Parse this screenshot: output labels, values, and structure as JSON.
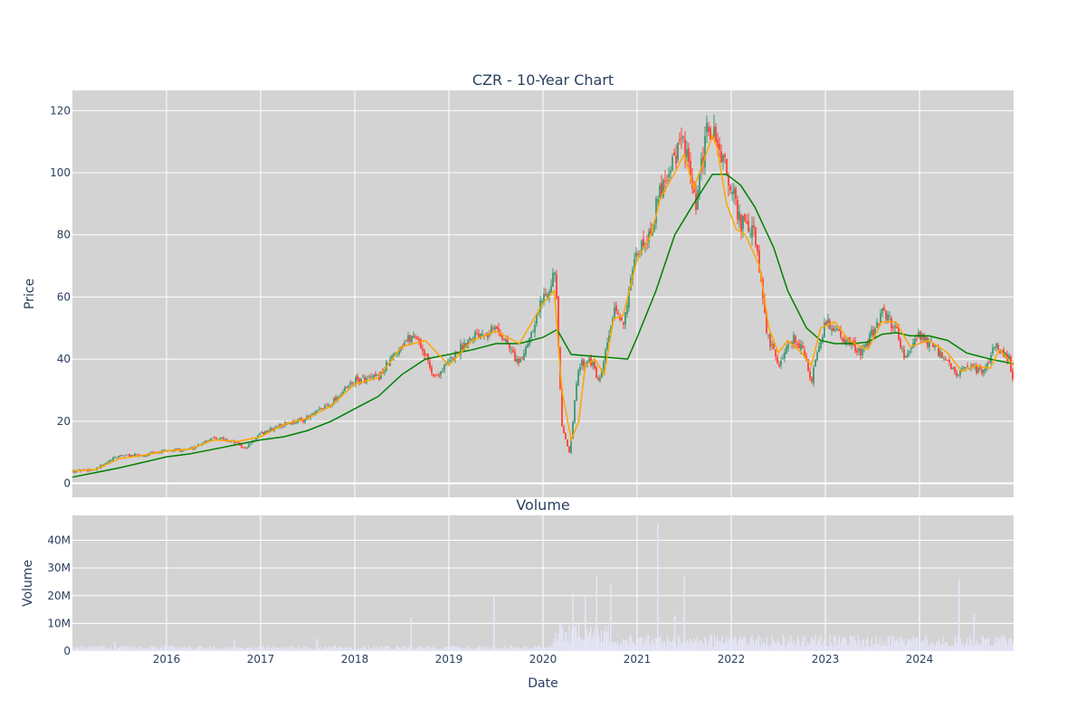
{
  "chart_data": [
    {
      "type": "candlestick",
      "title": "CZR - 10-Year Chart",
      "ylabel": "Price",
      "ylim": [
        -4.5,
        126.5
      ],
      "yticks": [
        0,
        20,
        40,
        60,
        80,
        100,
        120
      ],
      "x_ticks": [
        "2016",
        "2017",
        "2018",
        "2019",
        "2020",
        "2021",
        "2022",
        "2023",
        "2024"
      ],
      "xlim_year": [
        2015.0,
        2025.0
      ],
      "background": "#d3d3d3",
      "grid": true,
      "colors": {
        "up": "#3d9970",
        "down": "#ff4136",
        "ma_short": "#ffa500",
        "ma_long": "#008000"
      },
      "series": [
        {
          "type": "candles",
          "t": [
            2015.0,
            2015.25,
            2015.5,
            2015.75,
            2016.0,
            2016.25,
            2016.5,
            2016.75,
            2016.83,
            2017.0,
            2017.25,
            2017.5,
            2017.75,
            2018.0,
            2018.25,
            2018.5,
            2018.65,
            2018.85,
            2019.0,
            2019.25,
            2019.5,
            2019.6,
            2019.75,
            2020.0,
            2020.13,
            2020.2,
            2020.28,
            2020.38,
            2020.5,
            2020.6,
            2020.75,
            2020.85,
            2021.0,
            2021.15,
            2021.25,
            2021.38,
            2021.5,
            2021.62,
            2021.75,
            2021.85,
            2022.0,
            2022.1,
            2022.25,
            2022.38,
            2022.5,
            2022.65,
            2022.75,
            2022.85,
            2023.0,
            2023.1,
            2023.25,
            2023.4,
            2023.6,
            2023.75,
            2023.85,
            2024.0,
            2024.2,
            2024.4,
            2024.5,
            2024.7,
            2024.8,
            2024.95,
            2025.0
          ],
          "close": [
            4,
            4.5,
            9,
            9,
            10.5,
            11,
            15,
            13,
            11,
            16,
            19,
            21,
            26,
            33,
            34,
            45,
            48,
            34,
            39,
            48,
            50,
            46,
            38,
            60,
            68,
            18,
            10,
            38,
            40,
            32,
            55,
            52,
            74,
            82,
            95,
            105,
            110,
            88,
            115,
            110,
            95,
            84,
            80,
            48,
            38,
            47,
            44,
            33,
            52,
            50,
            45,
            42,
            55,
            50,
            40,
            48,
            42,
            35,
            37,
            36,
            45,
            40,
            33
          ]
        }
      ]
    },
    {
      "type": "line",
      "name_hint": "",
      "t": [
        2015.0,
        2015.25,
        2015.5,
        2015.75,
        2016.0,
        2016.25,
        2016.5,
        2016.75,
        2017.0,
        2017.25,
        2017.5,
        2017.75,
        2018.0,
        2018.25,
        2018.5,
        2018.75,
        2019.0,
        2019.25,
        2019.5,
        2019.75,
        2020.0,
        2020.12,
        2020.2,
        2020.3,
        2020.38,
        2020.45,
        2020.55,
        2020.65,
        2020.75,
        2020.85,
        2021.0,
        2021.15,
        2021.25,
        2021.4,
        2021.5,
        2021.6,
        2021.7,
        2021.8,
        2021.85,
        2021.95,
        2022.05,
        2022.15,
        2022.3,
        2022.4,
        2022.5,
        2022.6,
        2022.75,
        2022.85,
        2022.95,
        2023.1,
        2023.25,
        2023.45,
        2023.6,
        2023.75,
        2023.9,
        2024.1,
        2024.3,
        2024.45,
        2024.6,
        2024.75,
        2024.85,
        2025.0
      ],
      "values": [
        4,
        4.5,
        8,
        9,
        10.5,
        11,
        14,
        13.5,
        15,
        19,
        21,
        25,
        32,
        34,
        44,
        46,
        38,
        46,
        49,
        45,
        58,
        62,
        30,
        14,
        20,
        38,
        40,
        35,
        53,
        54,
        72,
        80,
        92,
        100,
        106,
        95,
        103,
        112,
        108,
        90,
        82,
        80,
        70,
        50,
        42,
        46,
        42,
        38,
        50,
        52,
        46,
        43,
        52,
        52,
        44,
        46,
        42,
        36,
        38,
        37,
        43,
        38
      ],
      "color": "#ffa500"
    },
    {
      "type": "line",
      "t": [
        2015.0,
        2015.5,
        2016.0,
        2016.25,
        2016.5,
        2016.75,
        2017.0,
        2017.25,
        2017.5,
        2017.75,
        2018.0,
        2018.25,
        2018.5,
        2018.75,
        2019.0,
        2019.25,
        2019.5,
        2019.75,
        2020.0,
        2020.15,
        2020.3,
        2020.5,
        2020.7,
        2020.9,
        2021.0,
        2021.2,
        2021.4,
        2021.6,
        2021.8,
        2021.95,
        2022.1,
        2022.25,
        2022.45,
        2022.6,
        2022.8,
        2022.95,
        2023.1,
        2023.3,
        2023.45,
        2023.6,
        2023.75,
        2023.9,
        2024.1,
        2024.3,
        2024.5,
        2024.75,
        2025.0
      ],
      "values": [
        2,
        5,
        8.5,
        9.5,
        11,
        12.5,
        14,
        15,
        17,
        20,
        24,
        28,
        35,
        40,
        41.5,
        43,
        45,
        45,
        47,
        49.5,
        41.5,
        41,
        40.5,
        40,
        47,
        62,
        80,
        90,
        99.5,
        99.5,
        96,
        89,
        76,
        62,
        50,
        46,
        45,
        45,
        45.5,
        48,
        48.5,
        47.5,
        47.5,
        46,
        42,
        40,
        38.5
      ],
      "color": "#008000"
    },
    {
      "type": "bar",
      "title": "Volume",
      "ylabel": "Volume",
      "xlabel": "Date",
      "ylim": [
        0,
        49000000
      ],
      "yticks": [
        0,
        10000000,
        20000000,
        30000000,
        40000000
      ],
      "ytick_labels": [
        "0",
        "10M",
        "20M",
        "30M",
        "40M"
      ],
      "color": "#e6e6fa",
      "events": [
        {
          "t": 2015.45,
          "v": 3500000
        },
        {
          "t": 2016.72,
          "v": 4000000
        },
        {
          "t": 2017.6,
          "v": 4500000
        },
        {
          "t": 2018.6,
          "v": 12000000
        },
        {
          "t": 2019.48,
          "v": 19500000
        },
        {
          "t": 2020.32,
          "v": 21000000
        },
        {
          "t": 2020.45,
          "v": 20000000
        },
        {
          "t": 2020.57,
          "v": 27000000
        },
        {
          "t": 2020.72,
          "v": 24000000
        },
        {
          "t": 2021.22,
          "v": 46000000
        },
        {
          "t": 2021.4,
          "v": 13000000
        },
        {
          "t": 2021.5,
          "v": 27000000
        },
        {
          "t": 2024.42,
          "v": 26000000
        },
        {
          "t": 2024.58,
          "v": 13500000
        }
      ]
    }
  ]
}
